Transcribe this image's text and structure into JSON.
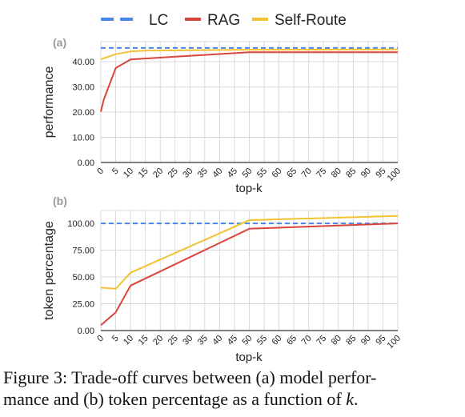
{
  "legend": [
    {
      "name": "LC",
      "color": "#4a86e8",
      "dash": true
    },
    {
      "name": "RAG",
      "color": "#d9453b",
      "dash": false
    },
    {
      "name": "Self-Route",
      "color": "#f1c232",
      "dash": false
    }
  ],
  "caption": {
    "prefix": "Figure 3: Trade-off curves between (a) model perfor-",
    "line2_start": "mance and (b) token percentage as a function of ",
    "k": "k",
    "line2_end": "."
  },
  "chart_data": [
    {
      "type": "line",
      "panel_label": "(a)",
      "xlabel": "top-k",
      "ylabel": "performance",
      "x_ticks": [
        0,
        5,
        10,
        15,
        20,
        25,
        30,
        35,
        40,
        45,
        50,
        55,
        60,
        65,
        70,
        75,
        80,
        85,
        90,
        95,
        100
      ],
      "y_ticks": [
        "0.00",
        "10.00",
        "20.00",
        "30.00",
        "40.00"
      ],
      "xlim": [
        0,
        100
      ],
      "ylim": [
        0,
        48
      ],
      "grid": true,
      "series": [
        {
          "name": "LC",
          "x": [
            0,
            100
          ],
          "y": [
            45.5,
            45.5
          ]
        },
        {
          "name": "RAG",
          "x": [
            0,
            1,
            5,
            10,
            50,
            100
          ],
          "y": [
            20.2,
            25,
            37.5,
            40.9,
            43.8,
            43.8
          ]
        },
        {
          "name": "Self-Route",
          "x": [
            0,
            5,
            10,
            15,
            50,
            100
          ],
          "y": [
            41.0,
            43.0,
            44.1,
            44.4,
            44.8,
            44.9
          ]
        }
      ]
    },
    {
      "type": "line",
      "panel_label": "(b)",
      "xlabel": "top-k",
      "ylabel": "token percentage",
      "x_ticks": [
        0,
        5,
        10,
        15,
        20,
        25,
        30,
        35,
        40,
        45,
        50,
        55,
        60,
        65,
        70,
        75,
        80,
        85,
        90,
        95,
        100
      ],
      "y_ticks": [
        "0.00",
        "25.00",
        "50.00",
        "75.00",
        "100.00"
      ],
      "xlim": [
        0,
        100
      ],
      "ylim": [
        0,
        112
      ],
      "grid": true,
      "series": [
        {
          "name": "LC",
          "x": [
            0,
            100
          ],
          "y": [
            100,
            100
          ]
        },
        {
          "name": "RAG",
          "x": [
            0,
            5,
            10,
            50,
            100
          ],
          "y": [
            5,
            17,
            42,
            95,
            100
          ]
        },
        {
          "name": "Self-Route",
          "x": [
            0,
            5,
            10,
            50,
            100
          ],
          "y": [
            40,
            39,
            54,
            103,
            107
          ]
        }
      ]
    }
  ]
}
